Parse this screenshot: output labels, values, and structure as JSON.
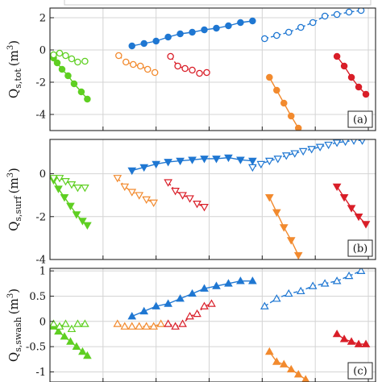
{
  "colors": {
    "blue": "#1f77d2",
    "green": "#5fcf22",
    "orange": "#f28a2e",
    "red": "#d91e28",
    "axis": "#222222",
    "grid": "#d4d4d4"
  },
  "chart_data": [
    {
      "type": "scatter",
      "panel_label": "(a)",
      "ylabel_main": "Q",
      "ylabel_sub": "s,tot",
      "ylabel_unit": "(m",
      "ylabel_exp": "3",
      "ylabel_close": ")",
      "ylim": [
        -5,
        2.6
      ],
      "yticks": [
        2,
        0,
        -2,
        -4
      ],
      "ytick_labels": [
        "2",
        "0",
        "-2",
        "-4"
      ],
      "marker": "circle",
      "grid": true,
      "series": [
        {
          "color": "green",
          "filled": true,
          "x": [
            0.3,
            0.6,
            1.0,
            1.5,
            2.0,
            2.6,
            3.1
          ],
          "y": [
            -0.5,
            -0.8,
            -1.2,
            -1.6,
            -2.1,
            -2.6,
            -3.05
          ]
        },
        {
          "color": "green",
          "filled": false,
          "x": [
            0.3,
            0.8,
            1.3,
            1.8,
            2.3,
            2.9
          ],
          "y": [
            -0.3,
            -0.2,
            -0.35,
            -0.55,
            -0.75,
            -0.7
          ]
        },
        {
          "color": "blue",
          "filled": true,
          "x": [
            6.8,
            7.8,
            8.8,
            9.8,
            10.8,
            11.8,
            12.8,
            13.8,
            14.8,
            15.8,
            16.8
          ],
          "y": [
            0.25,
            0.4,
            0.55,
            0.8,
            1.0,
            1.1,
            1.25,
            1.35,
            1.5,
            1.7,
            1.8
          ]
        },
        {
          "color": "blue",
          "filled": false,
          "x": [
            17.8,
            18.8,
            19.8,
            20.8,
            21.8,
            22.8,
            23.8,
            24.8,
            25.8
          ],
          "y": [
            0.7,
            0.9,
            1.1,
            1.4,
            1.7,
            2.1,
            2.2,
            2.35,
            2.45
          ]
        },
        {
          "color": "orange",
          "filled": false,
          "x": [
            5.7,
            6.3,
            6.9,
            7.5,
            8.1,
            8.7
          ],
          "y": [
            -0.35,
            -0.75,
            -0.9,
            -1.0,
            -1.2,
            -1.4
          ]
        },
        {
          "color": "red",
          "filled": false,
          "x": [
            10.0,
            10.6,
            11.2,
            11.8,
            12.4,
            13.0
          ],
          "y": [
            -0.4,
            -1.0,
            -1.15,
            -1.25,
            -1.45,
            -1.4
          ]
        },
        {
          "color": "orange",
          "filled": true,
          "x": [
            18.2,
            18.8,
            19.4,
            20.0,
            20.6
          ],
          "y": [
            -1.7,
            -2.5,
            -3.3,
            -4.1,
            -4.85
          ]
        },
        {
          "color": "red",
          "filled": true,
          "x": [
            23.8,
            24.4,
            25.0,
            25.6,
            26.2
          ],
          "y": [
            -0.4,
            -1.0,
            -1.7,
            -2.3,
            -2.75
          ]
        }
      ]
    },
    {
      "type": "scatter",
      "panel_label": "(b)",
      "ylabel_main": "Q",
      "ylabel_sub": "s,surf",
      "ylabel_unit": "(m",
      "ylabel_exp": "3",
      "ylabel_close": ")",
      "ylim": [
        -4,
        1.6
      ],
      "yticks": [
        0,
        -2,
        -4
      ],
      "ytick_labels": [
        "0",
        "-2",
        "-4"
      ],
      "marker": "triangle-down",
      "grid": true,
      "series": [
        {
          "color": "green",
          "filled": true,
          "x": [
            0.3,
            0.7,
            1.2,
            1.7,
            2.2,
            2.7,
            3.1
          ],
          "y": [
            -0.3,
            -0.7,
            -1.1,
            -1.5,
            -1.9,
            -2.2,
            -2.4
          ]
        },
        {
          "color": "green",
          "filled": false,
          "x": [
            0.3,
            0.8,
            1.3,
            1.8,
            2.3,
            2.9
          ],
          "y": [
            -0.2,
            -0.2,
            -0.35,
            -0.5,
            -0.65,
            -0.65
          ]
        },
        {
          "color": "blue",
          "filled": true,
          "x": [
            6.8,
            7.8,
            8.8,
            9.8,
            10.8,
            11.8,
            12.8,
            13.8,
            14.8,
            15.8,
            16.8
          ],
          "y": [
            0.15,
            0.3,
            0.45,
            0.55,
            0.6,
            0.65,
            0.7,
            0.7,
            0.75,
            0.65,
            0.6
          ]
        },
        {
          "color": "blue",
          "filled": false,
          "x": [
            16.8,
            17.5,
            18.2,
            18.9,
            19.6,
            20.3,
            21.0,
            21.7,
            22.4,
            23.1,
            23.8,
            24.5,
            25.2,
            25.9
          ],
          "y": [
            0.3,
            0.45,
            0.6,
            0.7,
            0.85,
            0.95,
            1.05,
            1.15,
            1.25,
            1.35,
            1.45,
            1.5,
            1.55,
            1.55
          ]
        },
        {
          "color": "orange",
          "filled": false,
          "x": [
            5.6,
            6.2,
            6.8,
            7.4,
            8.0,
            8.6
          ],
          "y": [
            -0.2,
            -0.6,
            -0.85,
            -1.0,
            -1.2,
            -1.35
          ]
        },
        {
          "color": "red",
          "filled": false,
          "x": [
            9.8,
            10.4,
            11.0,
            11.6,
            12.2,
            12.8
          ],
          "y": [
            -0.4,
            -0.8,
            -1.0,
            -1.15,
            -1.4,
            -1.55
          ]
        },
        {
          "color": "orange",
          "filled": true,
          "x": [
            18.2,
            18.8,
            19.4,
            20.0,
            20.6
          ],
          "y": [
            -1.1,
            -1.8,
            -2.5,
            -3.1,
            -3.8
          ]
        },
        {
          "color": "red",
          "filled": true,
          "x": [
            23.8,
            24.4,
            25.0,
            25.6,
            26.2
          ],
          "y": [
            -0.6,
            -1.1,
            -1.6,
            -2.0,
            -2.35
          ]
        }
      ]
    },
    {
      "type": "scatter",
      "panel_label": "(c)",
      "ylabel_main": "Q",
      "ylabel_sub": "s,swash",
      "ylabel_unit": "(m",
      "ylabel_exp": "3",
      "ylabel_close": ")",
      "ylim": [
        -1.2,
        1.05
      ],
      "yticks": [
        1,
        0.5,
        0,
        -0.5,
        -1
      ],
      "ytick_labels": [
        "1",
        "0.5",
        "0",
        "-0.5",
        "-1"
      ],
      "marker": "triangle-up",
      "grid": true,
      "series": [
        {
          "color": "green",
          "filled": true,
          "x": [
            0.3,
            0.7,
            1.2,
            1.7,
            2.2,
            2.7,
            3.1
          ],
          "y": [
            -0.1,
            -0.2,
            -0.3,
            -0.4,
            -0.5,
            -0.6,
            -0.68
          ]
        },
        {
          "color": "green",
          "filled": false,
          "x": [
            0.3,
            0.8,
            1.3,
            1.8,
            2.3,
            2.9
          ],
          "y": [
            -0.05,
            -0.1,
            -0.05,
            -0.15,
            -0.05,
            -0.05
          ]
        },
        {
          "color": "blue",
          "filled": true,
          "x": [
            6.8,
            7.8,
            8.8,
            9.8,
            10.8,
            11.8,
            12.8,
            13.8,
            14.8,
            15.8,
            16.8
          ],
          "y": [
            0.1,
            0.2,
            0.3,
            0.35,
            0.45,
            0.55,
            0.65,
            0.7,
            0.75,
            0.8,
            0.8
          ]
        },
        {
          "color": "blue",
          "filled": false,
          "x": [
            17.8,
            18.8,
            19.8,
            20.8,
            21.8,
            22.8,
            23.8,
            24.8,
            25.8
          ],
          "y": [
            0.3,
            0.45,
            0.55,
            0.6,
            0.7,
            0.75,
            0.8,
            0.9,
            1.0
          ]
        },
        {
          "color": "orange",
          "filled": false,
          "x": [
            5.6,
            6.2,
            6.8,
            7.4,
            8.0,
            8.6,
            9.2
          ],
          "y": [
            -0.05,
            -0.1,
            -0.1,
            -0.1,
            -0.1,
            -0.1,
            -0.05
          ]
        },
        {
          "color": "red",
          "filled": false,
          "x": [
            9.8,
            10.4,
            11.0,
            11.6,
            12.2,
            12.8,
            13.4
          ],
          "y": [
            -0.05,
            -0.1,
            -0.05,
            0.1,
            0.15,
            0.3,
            0.35
          ]
        },
        {
          "color": "orange",
          "filled": true,
          "x": [
            18.2,
            18.8,
            19.4,
            20.0,
            20.6,
            21.2
          ],
          "y": [
            -0.6,
            -0.8,
            -0.85,
            -0.95,
            -1.05,
            -1.15
          ]
        },
        {
          "color": "red",
          "filled": true,
          "x": [
            23.8,
            24.4,
            25.0,
            25.6,
            26.2
          ],
          "y": [
            -0.25,
            -0.35,
            -0.4,
            -0.45,
            -0.45
          ]
        }
      ]
    }
  ]
}
